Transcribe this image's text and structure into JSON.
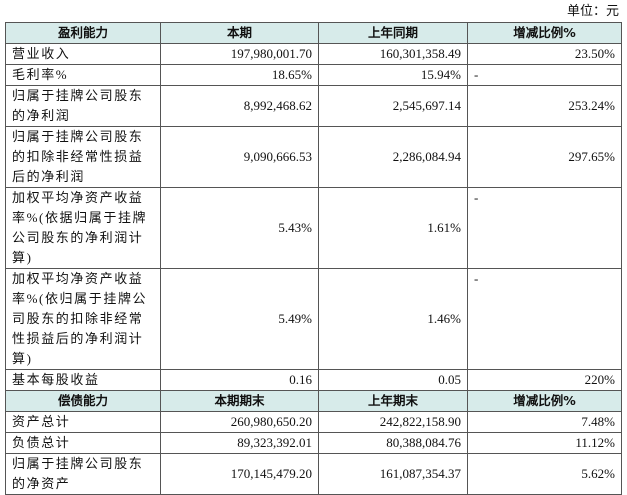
{
  "unit": "单位：元",
  "sections": [
    {
      "header": [
        "盈利能力",
        "本期",
        "上年同期",
        "增减比例%"
      ],
      "rows": [
        [
          "营业收入",
          "197,980,001.70",
          "160,301,358.49",
          "23.50%"
        ],
        [
          "毛利率%",
          "18.65%",
          "15.94%",
          "-"
        ],
        [
          "归属于挂牌公司股东的净利润",
          "8,992,468.62",
          "2,545,697.14",
          "253.24%"
        ],
        [
          "归属于挂牌公司股东的扣除非经常性损益后的净利润",
          "9,090,666.53",
          "2,286,084.94",
          "297.65%"
        ],
        [
          "加权平均净资产收益率%(依据归属于挂牌公司股东的净利润计算)",
          "5.43%",
          "1.61%",
          "-"
        ],
        [
          "加权平均净资产收益率%(依归属于挂牌公司股东的扣除非经常性损益后的净利润计算)",
          "5.49%",
          "1.46%",
          "-"
        ],
        [
          "基本每股收益",
          "0.16",
          "0.05",
          "220%"
        ]
      ]
    },
    {
      "header": [
        "偿债能力",
        "本期期末",
        "上年期末",
        "增减比例%"
      ],
      "rows": [
        [
          "资产总计",
          "260,980,650.20",
          "242,822,158.90",
          "7.48%"
        ],
        [
          "负债总计",
          "89,323,392.01",
          "80,388,084.76",
          "11.12%"
        ],
        [
          "归属于挂牌公司股东的净资产",
          "170,145,479.20",
          "161,087,354.37",
          "5.62%"
        ]
      ]
    }
  ]
}
